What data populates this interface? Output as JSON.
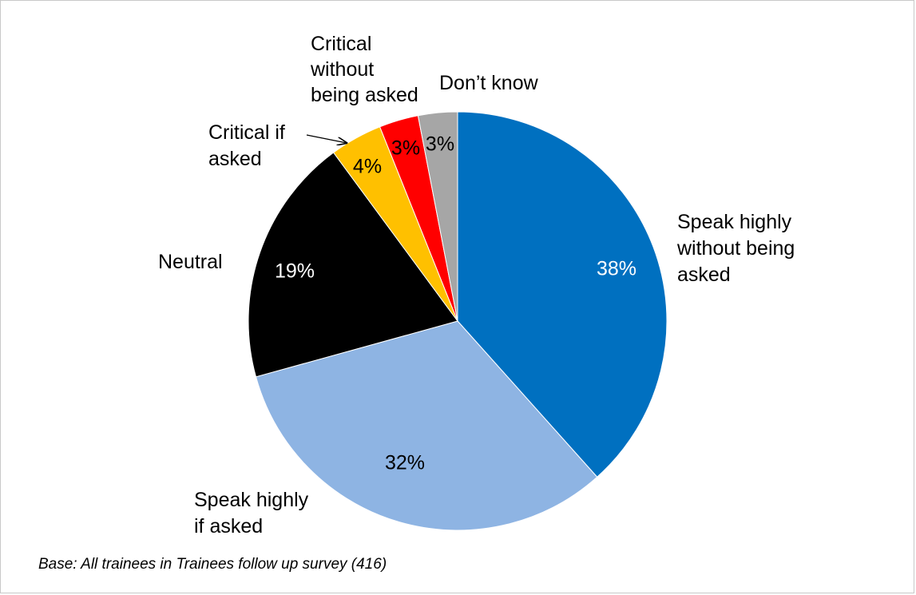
{
  "chart_data": {
    "type": "pie",
    "start_angle_deg": 0,
    "direction": "clockwise",
    "slices": [
      {
        "label": [
          "Speak highly",
          "without being",
          "asked"
        ],
        "value": 38,
        "value_label": "38%",
        "color": "#0070c0",
        "value_label_color": "#ffffff"
      },
      {
        "label": [
          "Speak highly",
          "if asked"
        ],
        "value": 32,
        "value_label": "32%",
        "color": "#8eb4e3",
        "value_label_color": "#000000"
      },
      {
        "label": [
          "Neutral"
        ],
        "value": 19,
        "value_label": "19%",
        "color": "#000000",
        "value_label_color": "#ffffff"
      },
      {
        "label": [
          "Critical if",
          "asked"
        ],
        "value": 4,
        "value_label": "4%",
        "color": "#ffc000",
        "value_label_color": "#000000"
      },
      {
        "label": [
          "Critical",
          "without",
          "being asked"
        ],
        "value": 3,
        "value_label": "3%",
        "color": "#ff0000",
        "value_label_color": "#000000"
      },
      {
        "label": [
          "Don’t know"
        ],
        "value": 3,
        "value_label": "3%",
        "color": "#a6a6a6",
        "value_label_color": "#000000"
      }
    ]
  },
  "footnote": "Base: All trainees in Trainees follow up survey (416)"
}
